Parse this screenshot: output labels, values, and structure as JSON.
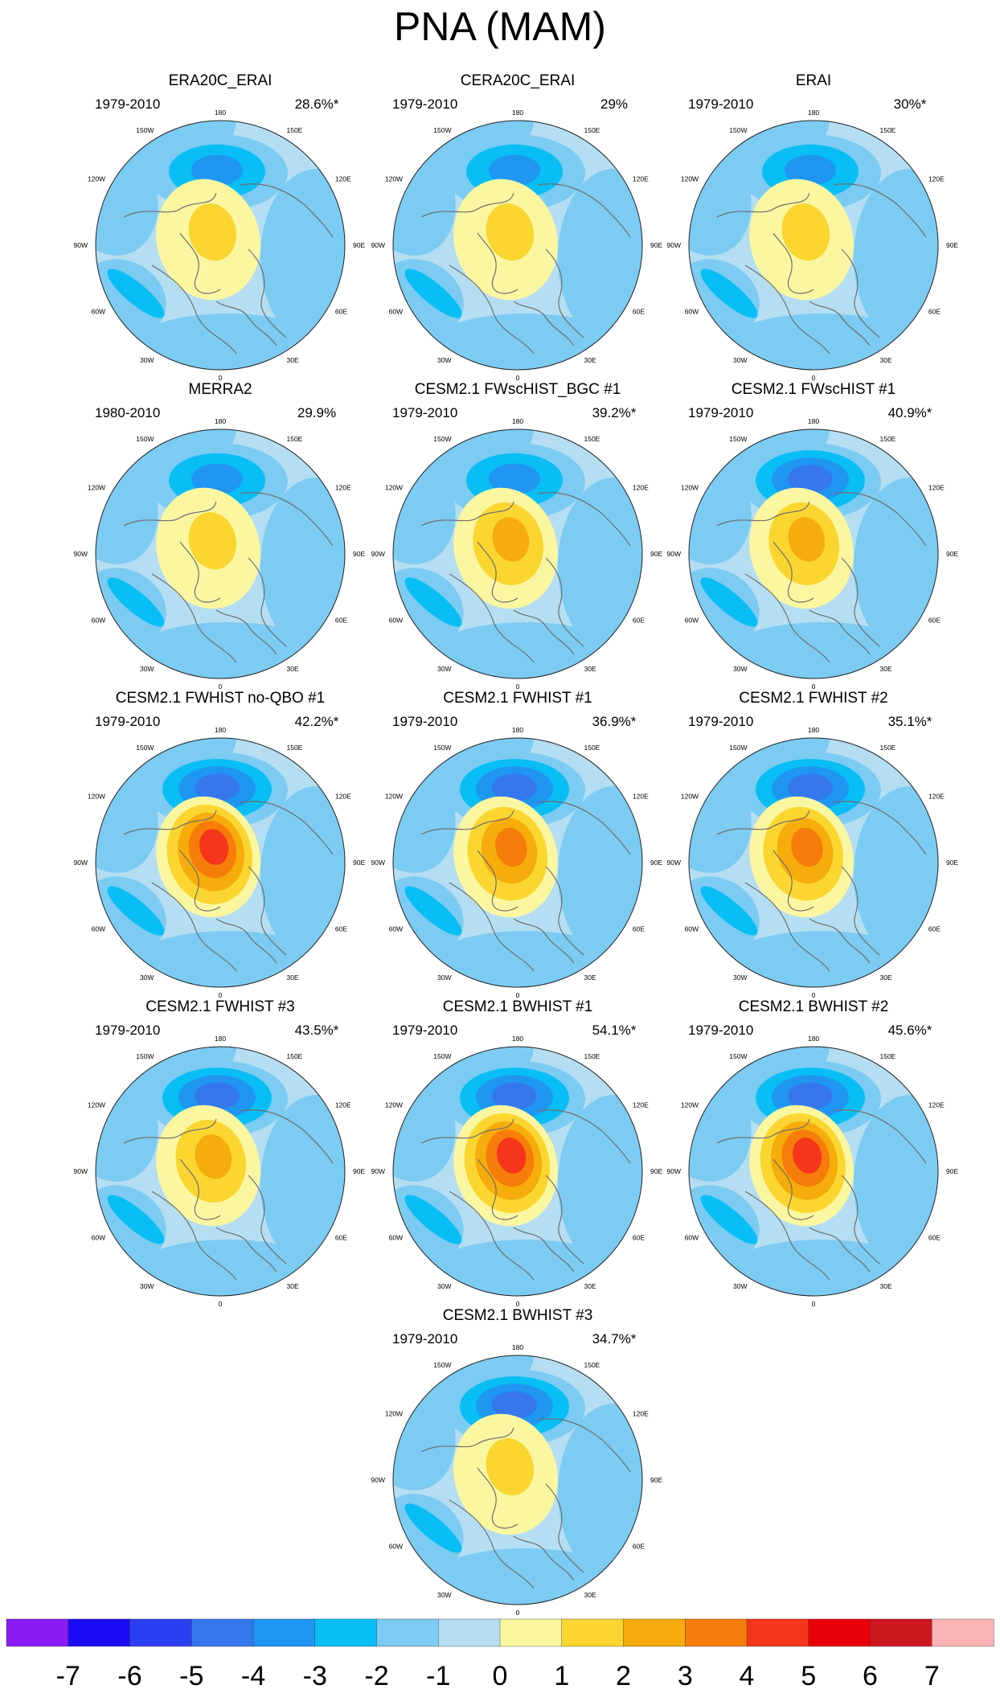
{
  "title": "PNA (MAM)",
  "chart_data": {
    "type": "heatmap",
    "projection": "north polar stereographic",
    "title": "PNA (MAM)",
    "lon_labels": [
      "180",
      "150E",
      "120E",
      "90E",
      "60E",
      "30E",
      "0",
      "30W",
      "60W",
      "90W",
      "120W",
      "150W"
    ],
    "colorbar": {
      "ticks": [
        "-7",
        "-6",
        "-5",
        "-4",
        "-3",
        "-2",
        "-1",
        "0",
        "1",
        "2",
        "3",
        "4",
        "5",
        "6",
        "7"
      ],
      "colors": [
        "#8a1cf5",
        "#1c0cf5",
        "#2c3ff0",
        "#3578ee",
        "#1f96f2",
        "#08bef5",
        "#7ccbf2",
        "#b5def2",
        "#fbf7a1",
        "#fbd631",
        "#f6ac0a",
        "#f67d0a",
        "#f5361a",
        "#e90009",
        "#ce171f",
        "#fbb4b5"
      ]
    },
    "panels": [
      {
        "name": "ERA20C_ERAI",
        "period": "1979-2010",
        "percent": "28.6%*",
        "neg_min": -3,
        "pos_max": 2
      },
      {
        "name": "CERA20C_ERAI",
        "period": "1979-2010",
        "percent": "29%",
        "neg_min": -3,
        "pos_max": 2
      },
      {
        "name": "ERAI",
        "period": "1979-2010",
        "percent": "30%*",
        "neg_min": -3,
        "pos_max": 2
      },
      {
        "name": "MERRA2",
        "period": "1980-2010",
        "percent": "29.9%",
        "neg_min": -3,
        "pos_max": 2
      },
      {
        "name": "CESM2.1 FWscHIST_BGC #1",
        "period": "1979-2010",
        "percent": "39.2%*",
        "neg_min": -3,
        "pos_max": 3
      },
      {
        "name": "CESM2.1 FWscHIST #1",
        "period": "1979-2010",
        "percent": "40.9%*",
        "neg_min": -4,
        "pos_max": 3
      },
      {
        "name": "CESM2.1 FWHIST no-QBO #1",
        "period": "1979-2010",
        "percent": "42.2%*",
        "neg_min": -4,
        "pos_max": 5
      },
      {
        "name": "CESM2.1 FWHIST #1",
        "period": "1979-2010",
        "percent": "36.9%*",
        "neg_min": -4,
        "pos_max": 4
      },
      {
        "name": "CESM2.1 FWHIST #2",
        "period": "1979-2010",
        "percent": "35.1%*",
        "neg_min": -4,
        "pos_max": 4
      },
      {
        "name": "CESM2.1 FWHIST #3",
        "period": "1979-2010",
        "percent": "43.5%*",
        "neg_min": -4,
        "pos_max": 3
      },
      {
        "name": "CESM2.1 BWHIST #1",
        "period": "1979-2010",
        "percent": "54.1%*",
        "neg_min": -4,
        "pos_max": 5
      },
      {
        "name": "CESM2.1 BWHIST #2",
        "period": "1979-2010",
        "percent": "45.6%*",
        "neg_min": -4,
        "pos_max": 5
      },
      {
        "name": "CESM2.1 BWHIST #3",
        "period": "1979-2010",
        "percent": "34.7%*",
        "neg_min": -4,
        "pos_max": 2
      }
    ]
  }
}
